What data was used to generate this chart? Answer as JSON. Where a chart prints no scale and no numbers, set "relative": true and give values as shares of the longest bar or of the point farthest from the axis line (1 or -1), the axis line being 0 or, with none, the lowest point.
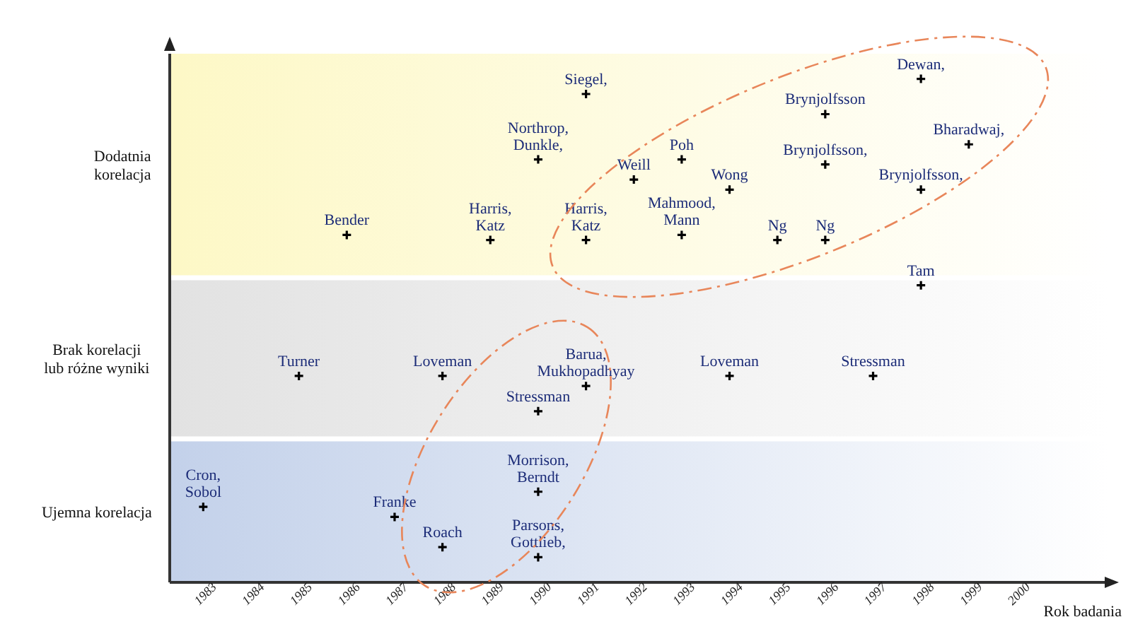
{
  "chart_data": {
    "type": "scatter",
    "xlabel": "Rok badania",
    "relative": true,
    "x": [
      1983,
      1987,
      1988,
      1990,
      1990,
      1985,
      1988,
      1991,
      1990,
      1994,
      1997,
      1998,
      1986,
      1989,
      1991,
      1990,
      1991,
      1992,
      1993,
      1993,
      1994,
      1995,
      1996,
      1996,
      1996,
      1998,
      1998,
      1999
    ],
    "series": [
      {
        "color": "#000000",
        "values": [
          0.15,
          0.13,
          0.07,
          0.18,
          0.05,
          0.41,
          0.41,
          0.39,
          0.34,
          0.41,
          0.41,
          0.59,
          0.69,
          0.68,
          0.68,
          0.84,
          0.97,
          0.8,
          0.84,
          0.69,
          0.78,
          0.68,
          0.68,
          0.93,
          0.83,
          1,
          0.78,
          0.87
        ]
      }
    ],
    "xlim": [
      1982.3,
      2001.9
    ],
    "xticks": [
      1983,
      1984,
      1985,
      1986,
      1987,
      1988,
      1989,
      1990,
      1991,
      1992,
      1993,
      1994,
      1995,
      1996,
      1997,
      1998,
      1999,
      2000
    ],
    "bands": [
      {
        "axis": "y",
        "from": 0,
        "to": 0.28,
        "color": "#c3d1ea",
        "label": "Ujemna korelacja"
      },
      {
        "axis": "y",
        "from": 0.29,
        "to": 0.6,
        "color": "#e2e2e2",
        "label": "Brak korelacji lub różne wyniki"
      },
      {
        "axis": "y",
        "from": 0.61,
        "to": 1.05,
        "color": "#fdf8c6",
        "label": "Dodatnia korelacja"
      }
    ],
    "marker": "cross",
    "grid": false,
    "legend": false,
    "annotations": [
      {
        "text": "Cron,\nSobol",
        "x": 1983,
        "y": 0.15
      },
      {
        "text": "Franke",
        "x": 1987,
        "y": 0.13
      },
      {
        "text": "Roach",
        "x": 1988,
        "y": 0.07
      },
      {
        "text": "Morrison,\nBerndt",
        "x": 1990,
        "y": 0.18
      },
      {
        "text": "Parsons,\nGottlieb,",
        "x": 1990,
        "y": 0.05
      },
      {
        "text": "Turner",
        "x": 1985,
        "y": 0.41
      },
      {
        "text": "Loveman",
        "x": 1988,
        "y": 0.41
      },
      {
        "text": "Barua,\nMukhopadhyay",
        "x": 1991,
        "y": 0.39
      },
      {
        "text": "Stressman",
        "x": 1990,
        "y": 0.34
      },
      {
        "text": "Loveman",
        "x": 1994,
        "y": 0.41
      },
      {
        "text": "Stressman",
        "x": 1997,
        "y": 0.41
      },
      {
        "text": "Tam",
        "x": 1998,
        "y": 0.59
      },
      {
        "text": "Bender",
        "x": 1986,
        "y": 0.69
      },
      {
        "text": "Harris,\nKatz",
        "x": 1989,
        "y": 0.68
      },
      {
        "text": "Harris,\nKatz",
        "x": 1991,
        "y": 0.68
      },
      {
        "text": "Northrop,\nDunkle,",
        "x": 1990,
        "y": 0.84
      },
      {
        "text": "Siegel,",
        "x": 1991,
        "y": 0.97
      },
      {
        "text": "Weill",
        "x": 1992,
        "y": 0.8
      },
      {
        "text": "Poh",
        "x": 1993,
        "y": 0.84
      },
      {
        "text": "Mahmood,\nMann",
        "x": 1993,
        "y": 0.69
      },
      {
        "text": "Wong",
        "x": 1994,
        "y": 0.78
      },
      {
        "text": "Ng",
        "x": 1995,
        "y": 0.68
      },
      {
        "text": "Ng",
        "x": 1996,
        "y": 0.68
      },
      {
        "text": "Brynjolfsson",
        "x": 1996,
        "y": 0.93
      },
      {
        "text": "Brynjolfsson,",
        "x": 1996,
        "y": 0.83
      },
      {
        "text": "Dewan,",
        "x": 1998,
        "y": 1
      },
      {
        "text": "Brynjolfsson,",
        "x": 1998,
        "y": 0.78
      },
      {
        "text": "Bharadwaj,",
        "x": 1999,
        "y": 0.87
      }
    ]
  }
}
